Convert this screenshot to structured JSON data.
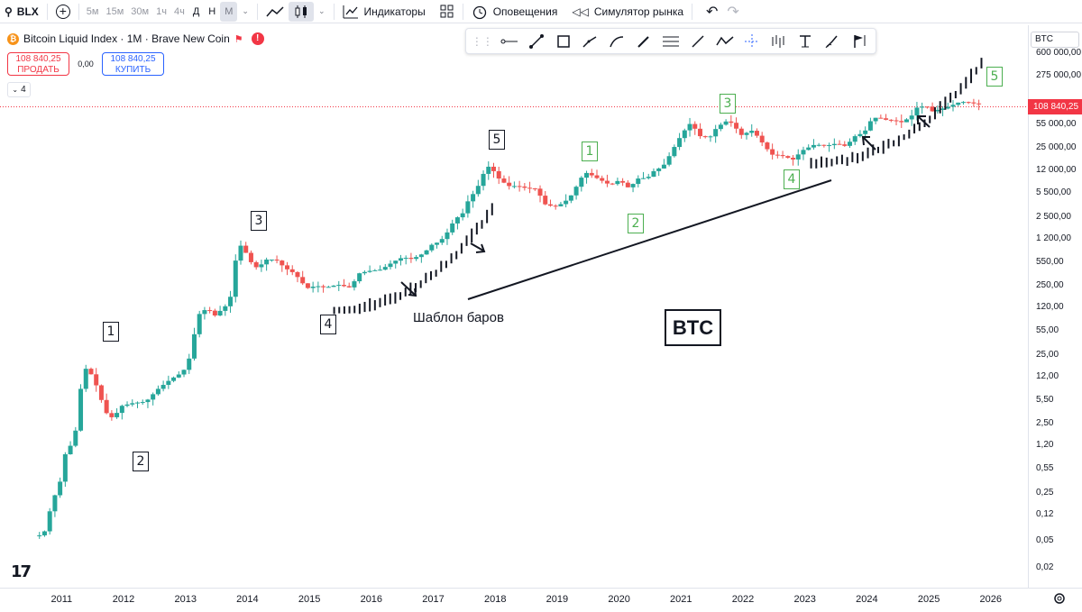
{
  "toolbar": {
    "symbol": "BLX",
    "intervals": [
      "5м",
      "15м",
      "30м",
      "1ч",
      "4ч",
      "Д",
      "Н",
      "М"
    ],
    "indicators": "Индикаторы",
    "alerts": "Оповещения",
    "replay": "Симулятор рынка"
  },
  "legend": {
    "title": "Bitcoin Liquid Index · 1M · Brave New Coin",
    "sell_price": "108 840,25",
    "sell_label": "ПРОДАТЬ",
    "spread": "0,00",
    "buy_price": "108 840,25",
    "buy_label": "КУПИТЬ",
    "collapse": "4"
  },
  "scale": {
    "symbol": "BTC",
    "current_price": "108 840,25",
    "labels": [
      "600 000,00",
      "275 000,00",
      "55 000,00",
      "25 000,00",
      "12 000,00",
      "5 500,00",
      "2 500,00",
      "1 200,00",
      "550,00",
      "250,00",
      "120,00",
      "55,00",
      "25,00",
      "12,00",
      "5,50",
      "2,50",
      "1,20",
      "0,55",
      "0,25",
      "0,12",
      "0,05",
      "0,02"
    ]
  },
  "time_axis": [
    "2011",
    "2012",
    "2013",
    "2014",
    "2015",
    "2016",
    "2017",
    "2018",
    "2019",
    "2020",
    "2021",
    "2022",
    "2023",
    "2024",
    "2025",
    "2026"
  ],
  "annotations": {
    "waves_black": [
      "1",
      "2",
      "3",
      "4",
      "5"
    ],
    "waves_green": [
      "1",
      "2",
      "3",
      "4",
      "5"
    ],
    "bar_pattern": "Шаблон баров",
    "btc": "BTC"
  },
  "colors": {
    "up": "#26a69a",
    "down": "#ef5350",
    "accent": "#2962ff",
    "price_line": "#f23645"
  },
  "chart_data": {
    "type": "candlestick",
    "title": "Bitcoin Liquid Index · 1M · Brave New Coin",
    "y_scale": "log",
    "ylim": [
      0.015,
      800000
    ],
    "xlim": [
      2010.5,
      2026.6
    ],
    "last_price": 108840.25,
    "path": [
      [
        2010.6,
        0.06
      ],
      [
        2010.75,
        0.06
      ],
      [
        2010.9,
        0.2
      ],
      [
        2011.0,
        0.3
      ],
      [
        2011.1,
        0.9
      ],
      [
        2011.25,
        1.5
      ],
      [
        2011.35,
        8
      ],
      [
        2011.42,
        16
      ],
      [
        2011.5,
        14
      ],
      [
        2011.6,
        9
      ],
      [
        2011.7,
        5
      ],
      [
        2011.8,
        3
      ],
      [
        2011.9,
        3.2
      ],
      [
        2012.0,
        4.5
      ],
      [
        2012.2,
        5
      ],
      [
        2012.4,
        5.2
      ],
      [
        2012.6,
        8
      ],
      [
        2012.8,
        11
      ],
      [
        2013.0,
        14
      ],
      [
        2013.1,
        22
      ],
      [
        2013.25,
        95
      ],
      [
        2013.4,
        120
      ],
      [
        2013.5,
        90
      ],
      [
        2013.7,
        130
      ],
      [
        2013.8,
        200
      ],
      [
        2013.88,
        1100
      ],
      [
        2014.0,
        800
      ],
      [
        2014.1,
        550
      ],
      [
        2014.2,
        450
      ],
      [
        2014.35,
        600
      ],
      [
        2014.5,
        600
      ],
      [
        2014.65,
        450
      ],
      [
        2014.8,
        380
      ],
      [
        2015.0,
        230
      ],
      [
        2015.15,
        250
      ],
      [
        2015.3,
        235
      ],
      [
        2015.5,
        260
      ],
      [
        2015.7,
        235
      ],
      [
        2015.85,
        380
      ],
      [
        2016.0,
        410
      ],
      [
        2016.2,
        430
      ],
      [
        2016.4,
        560
      ],
      [
        2016.55,
        650
      ],
      [
        2016.7,
        610
      ],
      [
        2016.9,
        750
      ],
      [
        2017.0,
        970
      ],
      [
        2017.15,
        1100
      ],
      [
        2017.25,
        1400
      ],
      [
        2017.4,
        2400
      ],
      [
        2017.5,
        2600
      ],
      [
        2017.6,
        4200
      ],
      [
        2017.75,
        6500
      ],
      [
        2017.85,
        10500
      ],
      [
        2017.95,
        14000
      ],
      [
        2018.1,
        9000
      ],
      [
        2018.25,
        7000
      ],
      [
        2018.4,
        7000
      ],
      [
        2018.55,
        6500
      ],
      [
        2018.7,
        6400
      ],
      [
        2018.85,
        3800
      ],
      [
        2019.0,
        3500
      ],
      [
        2019.15,
        4000
      ],
      [
        2019.3,
        5500
      ],
      [
        2019.4,
        8500
      ],
      [
        2019.5,
        11000
      ],
      [
        2019.6,
        10000
      ],
      [
        2019.75,
        8500
      ],
      [
        2019.9,
        7200
      ],
      [
        2020.05,
        8600
      ],
      [
        2020.2,
        6500
      ],
      [
        2020.35,
        9000
      ],
      [
        2020.5,
        9200
      ],
      [
        2020.6,
        11500
      ],
      [
        2020.75,
        13500
      ],
      [
        2020.85,
        19000
      ],
      [
        2021.0,
        33000
      ],
      [
        2021.1,
        45000
      ],
      [
        2021.2,
        58000
      ],
      [
        2021.35,
        37000
      ],
      [
        2021.5,
        35000
      ],
      [
        2021.6,
        47000
      ],
      [
        2021.75,
        61000
      ],
      [
        2021.88,
        57000
      ],
      [
        2022.0,
        38000
      ],
      [
        2022.2,
        45000
      ],
      [
        2022.35,
        30000
      ],
      [
        2022.5,
        20000
      ],
      [
        2022.65,
        19500
      ],
      [
        2022.85,
        17000
      ],
      [
        2023.0,
        23000
      ],
      [
        2023.2,
        28000
      ],
      [
        2023.4,
        27000
      ],
      [
        2023.55,
        29000
      ],
      [
        2023.7,
        26500
      ],
      [
        2023.85,
        37000
      ],
      [
        2024.0,
        42000
      ],
      [
        2024.1,
        61000
      ],
      [
        2024.2,
        70000
      ],
      [
        2024.35,
        64000
      ],
      [
        2024.5,
        62000
      ],
      [
        2024.6,
        59000
      ],
      [
        2024.75,
        70000
      ],
      [
        2024.85,
        96000
      ],
      [
        2025.0,
        102000
      ],
      [
        2025.1,
        85000
      ],
      [
        2025.3,
        95000
      ],
      [
        2025.45,
        107000
      ],
      [
        2025.55,
        117000
      ],
      [
        2025.7,
        114000
      ],
      [
        2025.8,
        108840
      ]
    ],
    "bar_pattern_copies": [
      {
        "x": [
          2015.4,
          2017.95
        ],
        "y": [
          110,
          3000
        ]
      },
      {
        "x": [
          2023.1,
          2025.85
        ],
        "y": [
          15000,
          400000
        ]
      }
    ],
    "trend_line": {
      "x": [
        2017.4,
        2023.5
      ],
      "y": [
        210,
        10500
      ]
    }
  }
}
